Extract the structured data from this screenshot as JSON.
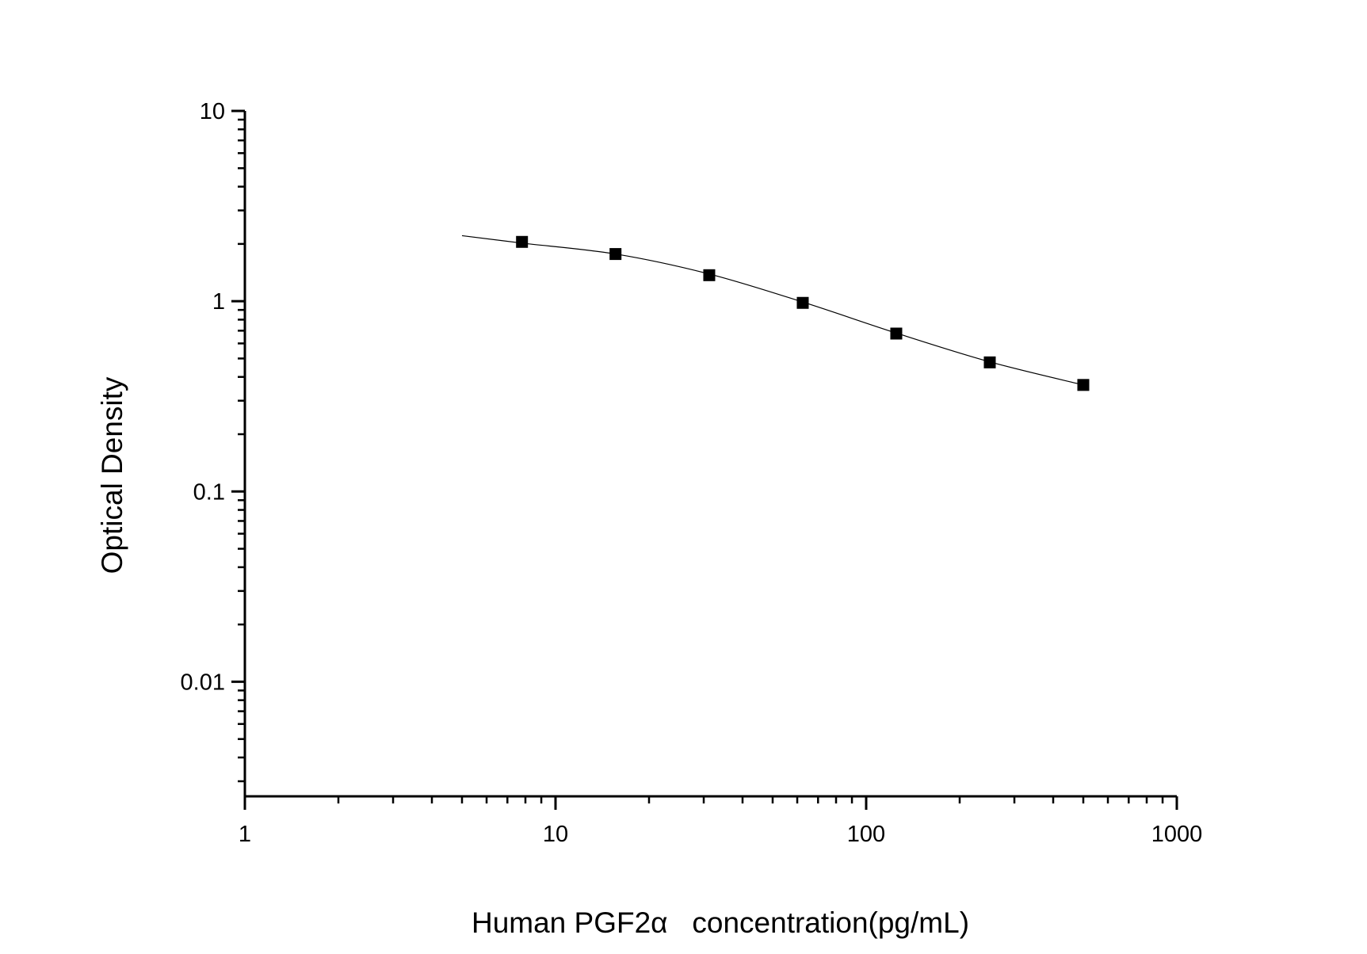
{
  "chart_data": {
    "type": "scatter",
    "title": "",
    "xlabel": "Human PGF2α   concentration(pg/mL)",
    "ylabel": "Optical Density",
    "x_scale": "log",
    "y_scale": "log",
    "xlim": [
      1,
      1000
    ],
    "ylim": [
      0.0025,
      10
    ],
    "x_ticks": [
      1,
      10,
      100,
      1000
    ],
    "x_tick_labels": [
      "1",
      "10",
      "100",
      "1000"
    ],
    "y_ticks": [
      10,
      1,
      0.1,
      0.01
    ],
    "y_tick_labels": [
      "10",
      "1",
      "0.1",
      "0.01"
    ],
    "grid": false,
    "legend": "none",
    "series": [
      {
        "marker": "square",
        "color": "#000000",
        "x": [
          7.8,
          15.6,
          31.25,
          62.5,
          125,
          250,
          500
        ],
        "y": [
          2.05,
          1.77,
          1.37,
          0.98,
          0.676,
          0.477,
          0.363
        ]
      }
    ],
    "fit_curve": {
      "color": "#000000",
      "x": [
        5,
        7.8,
        15.6,
        31.25,
        62.5,
        125,
        250,
        500
      ],
      "y": [
        2.21,
        2.02,
        1.77,
        1.39,
        0.99,
        0.68,
        0.48,
        0.363
      ]
    }
  }
}
